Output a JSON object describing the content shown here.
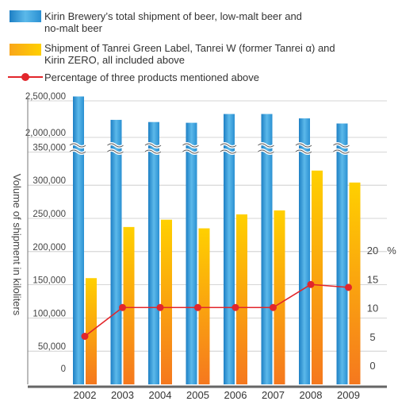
{
  "chart_data": {
    "type": "bar",
    "title": "",
    "xlabel": "",
    "ylabel": "Volume of shipment in kiloliters",
    "y2label": "%",
    "broken_axis": true,
    "categories": [
      "2002",
      "2003",
      "2004",
      "2005",
      "2006",
      "2007",
      "2008",
      "2009"
    ],
    "y_ticks_lower": [
      "0",
      "50,000",
      "100,000",
      "150,000",
      "200,000",
      "250,000",
      "300,000",
      "350,000"
    ],
    "y_ticks_upper": [
      "2,000,000",
      "2,500,000"
    ],
    "y2_ticks": [
      "0",
      "5",
      "10",
      "15",
      "20"
    ],
    "ylim": [
      0,
      2500000
    ],
    "y2lim": [
      0,
      20
    ],
    "legend_position": "top",
    "series": [
      {
        "name": "Kirin Brewery's total shipment of beer, low-malt beer and no-malt beer",
        "legend_lines": [
          "Kirin Brewery’s total shipment of beer, low-malt beer and",
          "no-malt beer"
        ],
        "kind": "bar",
        "color": "#3fa3dc",
        "values": [
          2560000,
          2240000,
          2210000,
          2200000,
          2320000,
          2320000,
          2260000,
          2190000
        ]
      },
      {
        "name": "Shipment of Tanrei Green Label, Tanrei W (former Tanrei α) and Kirin ZERO, all included above",
        "legend_lines": [
          "Shipment of Tanrei Green Label, Tanrei W (former Tanrei α) and",
          "Kirin ZERO, all included above"
        ],
        "kind": "bar",
        "color": "#f7a21c",
        "values": [
          160000,
          237000,
          248000,
          235000,
          256000,
          262000,
          322000,
          304000
        ]
      },
      {
        "name": "Percentage of three products mentioned above",
        "legend_lines": [
          "Percentage of three products mentioned above"
        ],
        "kind": "line",
        "axis": "right",
        "color": "#e2262b",
        "values": [
          6,
          11,
          11,
          11,
          11,
          11,
          15,
          14.5
        ]
      }
    ]
  }
}
